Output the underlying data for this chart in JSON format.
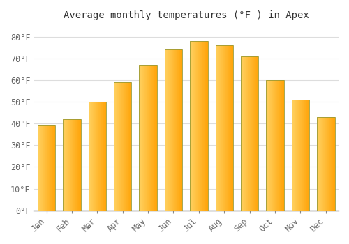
{
  "title": "Average monthly temperatures (°F ) in Apex",
  "months": [
    "Jan",
    "Feb",
    "Mar",
    "Apr",
    "May",
    "Jun",
    "Jul",
    "Aug",
    "Sep",
    "Oct",
    "Nov",
    "Dec"
  ],
  "temperatures": [
    39,
    42,
    50,
    59,
    67,
    74,
    78,
    76,
    71,
    60,
    51,
    43
  ],
  "bar_color_left": "#FFD060",
  "bar_color_right": "#FFA500",
  "bar_edge_color": "#888800",
  "background_color": "#ffffff",
  "plot_bg_color": "#ffffff",
  "grid_color": "#dddddd",
  "ylim": [
    0,
    85
  ],
  "yticks": [
    0,
    10,
    20,
    30,
    40,
    50,
    60,
    70,
    80
  ],
  "ytick_labels": [
    "0°F",
    "10°F",
    "20°F",
    "30°F",
    "40°F",
    "50°F",
    "60°F",
    "70°F",
    "80°F"
  ],
  "title_fontsize": 10,
  "tick_fontsize": 8.5,
  "font_family": "monospace"
}
